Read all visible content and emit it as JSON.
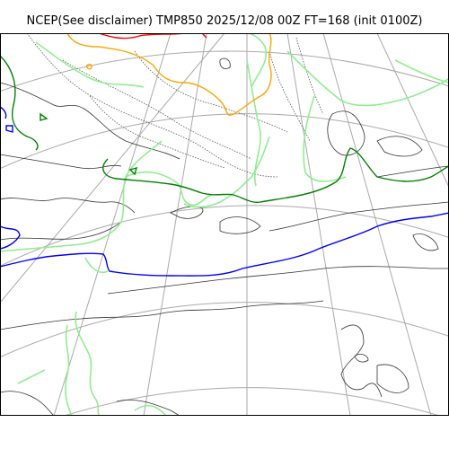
{
  "title": "NCEP(See disclaimer) TMP850 2025/12/08 00Z FT=168 (init 0100Z)",
  "colors": {
    "coastline": "#333333",
    "graticule": "#aaaaaa",
    "isotherm_light_green": "#90ee90",
    "isotherm_green": "#008000",
    "isotherm_blue": "#0000ff",
    "isotherm_orange": "#ffa500",
    "isotherm_red": "#ff0000",
    "dotted_contour": "#555555"
  }
}
